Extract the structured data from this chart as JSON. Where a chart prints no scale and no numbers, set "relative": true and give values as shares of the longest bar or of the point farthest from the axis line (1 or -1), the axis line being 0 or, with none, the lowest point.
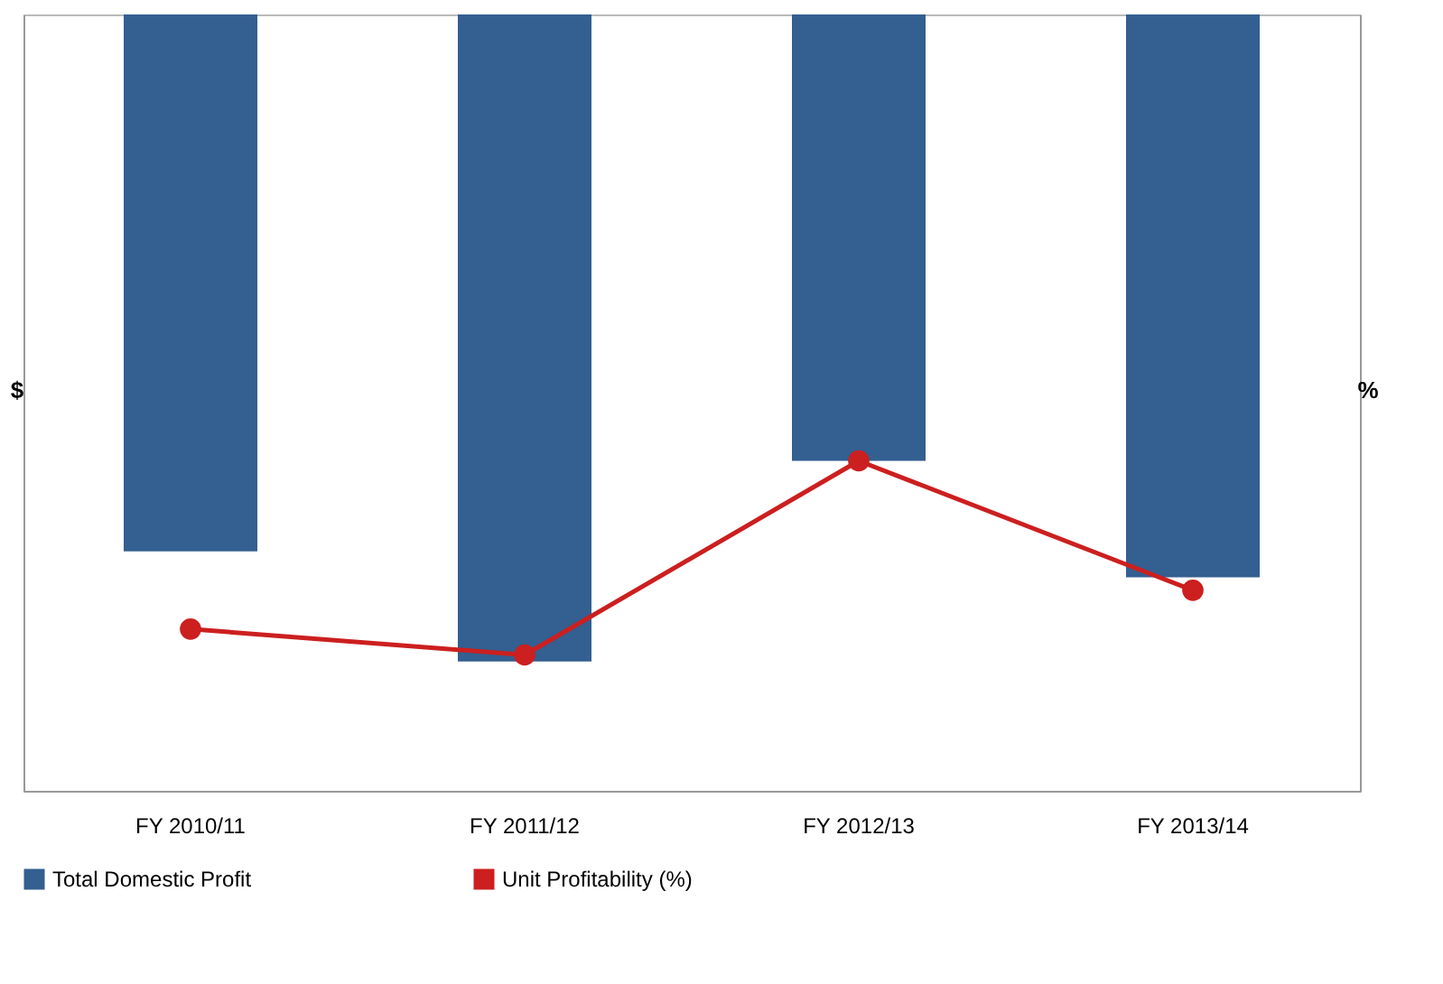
{
  "chart_data": {
    "type": "bar",
    "relative": true,
    "ylabel": "$",
    "y2label": "%",
    "categories": [
      "FY 2010/11",
      "FY 2011/12",
      "FY 2012/13",
      "FY 2013/14"
    ],
    "series": [
      {
        "name": "Total Domestic Profit",
        "color": "#335f91",
        "values": [
          -0.83,
          -1,
          -0.69,
          -0.87
        ]
      },
      {
        "name": "Unit Profitability (%)",
        "type": "line",
        "axis": "y2",
        "color": "#cc1f1f",
        "marker": "circle",
        "values": [
          -0.95,
          -0.99,
          -0.69,
          -0.89
        ]
      }
    ],
    "grid": false,
    "legend": "bottom"
  }
}
